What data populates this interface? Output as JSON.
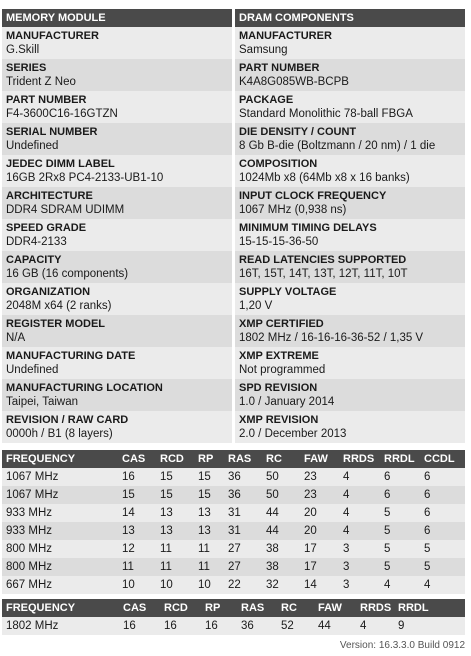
{
  "module": {
    "header": "MEMORY MODULE",
    "rows": [
      {
        "label": "MANUFACTURER",
        "value": "G.Skill"
      },
      {
        "label": "SERIES",
        "value": "Trident Z Neo"
      },
      {
        "label": "PART NUMBER",
        "value": "F4-3600C16-16GTZN"
      },
      {
        "label": "SERIAL NUMBER",
        "value": "Undefined"
      },
      {
        "label": "JEDEC DIMM LABEL",
        "value": "16GB 2Rx8 PC4-2133-UB1-10"
      },
      {
        "label": "ARCHITECTURE",
        "value": "DDR4 SDRAM UDIMM"
      },
      {
        "label": "SPEED GRADE",
        "value": "DDR4-2133"
      },
      {
        "label": "CAPACITY",
        "value": "16 GB (16 components)"
      },
      {
        "label": "ORGANIZATION",
        "value": "2048M x64 (2 ranks)"
      },
      {
        "label": "REGISTER MODEL",
        "value": "N/A"
      },
      {
        "label": "MANUFACTURING DATE",
        "value": "Undefined"
      },
      {
        "label": "MANUFACTURING LOCATION",
        "value": "Taipei, Taiwan"
      },
      {
        "label": "REVISION / RAW CARD",
        "value": "0000h / B1 (8 layers)"
      }
    ]
  },
  "dram": {
    "header": "DRAM COMPONENTS",
    "rows": [
      {
        "label": "MANUFACTURER",
        "value": "Samsung"
      },
      {
        "label": "PART NUMBER",
        "value": "K4A8G085WB-BCPB"
      },
      {
        "label": "PACKAGE",
        "value": "Standard Monolithic 78-ball FBGA"
      },
      {
        "label": "DIE DENSITY / COUNT",
        "value": "8 Gb B-die (Boltzmann / 20 nm) / 1 die"
      },
      {
        "label": "COMPOSITION",
        "value": "1024Mb x8 (64Mb x8 x 16 banks)"
      },
      {
        "label": "INPUT CLOCK FREQUENCY",
        "value": "1067 MHz (0,938 ns)"
      },
      {
        "label": "MINIMUM TIMING DELAYS",
        "value": "15-15-15-36-50"
      },
      {
        "label": "READ LATENCIES SUPPORTED",
        "value": "16T, 15T, 14T, 13T, 12T, 11T, 10T"
      },
      {
        "label": "SUPPLY VOLTAGE",
        "value": "1,20 V"
      },
      {
        "label": "XMP CERTIFIED",
        "value": "1802 MHz / 16-16-16-36-52 / 1,35 V"
      },
      {
        "label": "XMP EXTREME",
        "value": "Not programmed"
      },
      {
        "label": "SPD REVISION",
        "value": "1.0 / January 2014"
      },
      {
        "label": "XMP REVISION",
        "value": "2.0 / December 2013"
      }
    ]
  },
  "freq_table": {
    "headers": [
      "FREQUENCY",
      "CAS",
      "RCD",
      "RP",
      "RAS",
      "RC",
      "FAW",
      "RRDS",
      "RRDL",
      "CCDL"
    ],
    "rows": [
      [
        "1067 MHz",
        "16",
        "15",
        "15",
        "36",
        "50",
        "23",
        "4",
        "6",
        "6"
      ],
      [
        "1067 MHz",
        "15",
        "15",
        "15",
        "36",
        "50",
        "23",
        "4",
        "6",
        "6"
      ],
      [
        "933 MHz",
        "14",
        "13",
        "13",
        "31",
        "44",
        "20",
        "4",
        "5",
        "6"
      ],
      [
        "933 MHz",
        "13",
        "13",
        "13",
        "31",
        "44",
        "20",
        "4",
        "5",
        "6"
      ],
      [
        "800 MHz",
        "12",
        "11",
        "11",
        "27",
        "38",
        "17",
        "3",
        "5",
        "5"
      ],
      [
        "800 MHz",
        "11",
        "11",
        "11",
        "27",
        "38",
        "17",
        "3",
        "5",
        "5"
      ],
      [
        "667 MHz",
        "10",
        "10",
        "10",
        "22",
        "32",
        "14",
        "3",
        "4",
        "4"
      ]
    ]
  },
  "xmp_table": {
    "headers": [
      "FREQUENCY",
      "CAS",
      "RCD",
      "RP",
      "RAS",
      "RC",
      "FAW",
      "RRDS",
      "RRDL"
    ],
    "rows": [
      [
        "1802 MHz",
        "16",
        "16",
        "16",
        "36",
        "52",
        "44",
        "4",
        "9"
      ]
    ]
  },
  "version": "Version: 16.3.3.0 Build 0912"
}
